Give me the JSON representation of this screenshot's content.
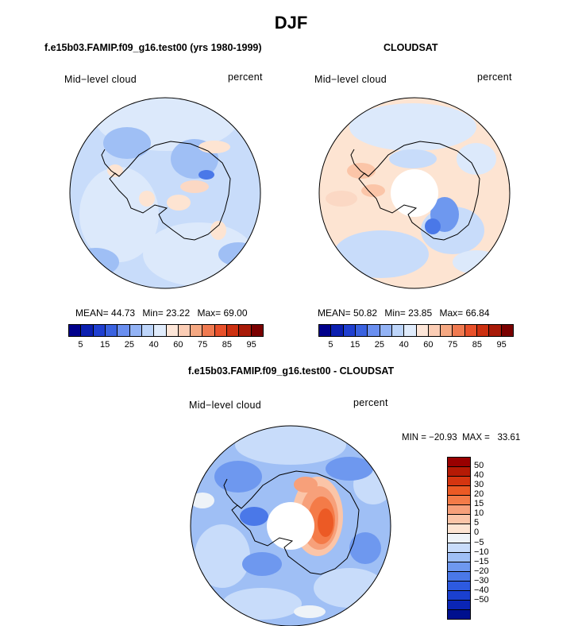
{
  "page_title": "DJF",
  "panel1": {
    "title": "f.e15b03.FAMIP.f09_g16.test00 (yrs 1980-1999)",
    "left_label": "Mid−level cloud",
    "right_label": "percent",
    "stats": {
      "mean_label": "MEAN=",
      "mean": "44.73",
      "min_label": "Min=",
      "min": "23.22",
      "max_label": "Max=",
      "max": "69.00"
    }
  },
  "panel2": {
    "title": "CLOUDSAT",
    "left_label": "Mid−level cloud",
    "right_label": "percent",
    "stats": {
      "mean_label": "MEAN=",
      "mean": "50.82",
      "min_label": "Min=",
      "min": "23.85",
      "max_label": "Max=",
      "max": "66.84"
    }
  },
  "panel3": {
    "title": "f.e15b03.FAMIP.f09_g16.test00 - CLOUDSAT",
    "left_label": "Mid−level cloud",
    "right_label": "percent",
    "minmax": "MIN = −20.93  MAX =   33.61"
  },
  "colorbar_h": {
    "colors": [
      "#00008b",
      "#0b1fb0",
      "#1f3fd0",
      "#3a62e0",
      "#6a8ff0",
      "#93b3f5",
      "#bdd5fa",
      "#e0ecfc",
      "#fde6d8",
      "#fbcdb5",
      "#f5a882",
      "#f07a50",
      "#e8502a",
      "#cc3010",
      "#a81a08",
      "#7a0000"
    ],
    "ticks": [
      "5",
      "15",
      "25",
      "40",
      "60",
      "75",
      "85",
      "95"
    ]
  },
  "colorbar_v": {
    "colors": [
      "#990000",
      "#b51a05",
      "#d53510",
      "#ec5a25",
      "#f47b48",
      "#f7a07a",
      "#fbc5a8",
      "#fde4d2",
      "#eef3f8",
      "#c8dcfa",
      "#9fbff5",
      "#6e98ef",
      "#4a78e8",
      "#2d5ae0",
      "#1a40d0",
      "#0a25b5",
      "#00108e"
    ],
    "ticks": [
      "50",
      "40",
      "30",
      "20",
      "15",
      "10",
      "5",
      "0",
      "−5",
      "−10",
      "−15",
      "−20",
      "−30",
      "−40",
      "−50"
    ]
  }
}
